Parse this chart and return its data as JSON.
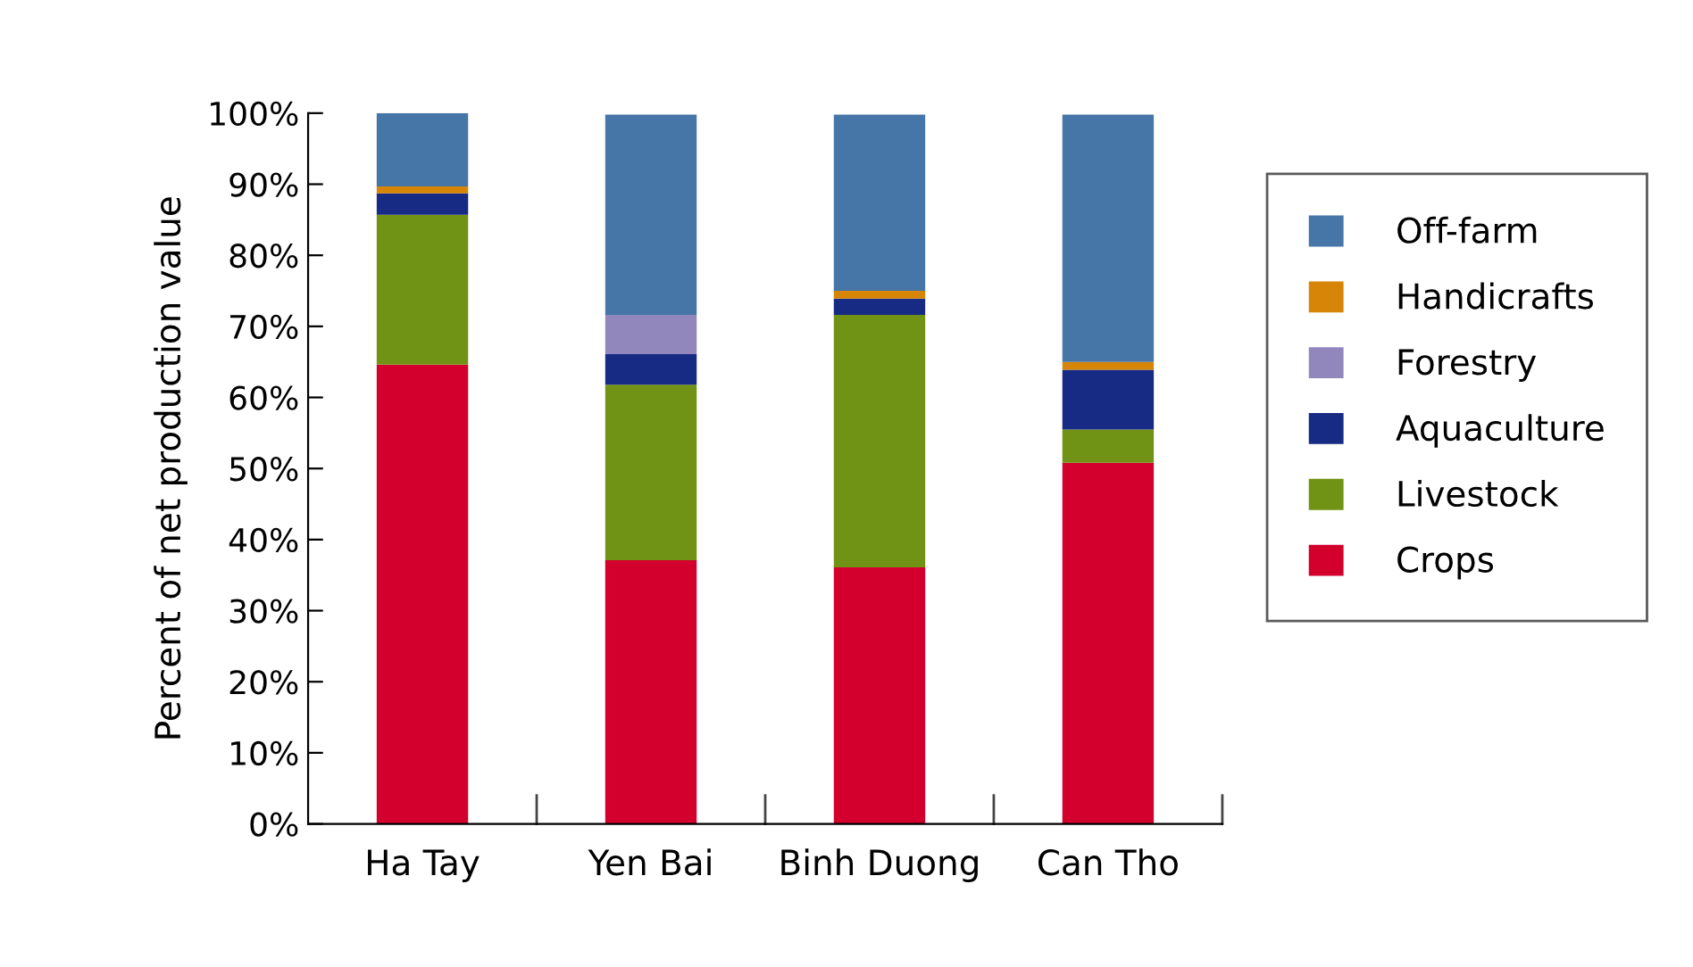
{
  "chart_data": {
    "type": "bar",
    "stacked": true,
    "ylabel": "Percent of net production value",
    "categories": [
      "Ha Tay",
      "Yen Bai",
      "Binh Duong",
      "Can Tho"
    ],
    "series": [
      {
        "name": "Crops",
        "color": "#d3002d",
        "values": [
          64.6,
          37.1,
          36.1,
          50.8
        ]
      },
      {
        "name": "Livestock",
        "color": "#719315",
        "values": [
          21.1,
          24.7,
          35.5,
          4.7
        ]
      },
      {
        "name": "Aquaculture",
        "color": "#172a84",
        "values": [
          3.0,
          4.3,
          2.3,
          8.4
        ]
      },
      {
        "name": "Forestry",
        "color": "#9187bc",
        "values": [
          0,
          5.5,
          0,
          0
        ]
      },
      {
        "name": "Handicrafts",
        "color": "#d78507",
        "values": [
          1.0,
          0,
          1.1,
          1.1
        ]
      },
      {
        "name": "Off-farm",
        "color": "#4675a8",
        "values": [
          10.3,
          28.2,
          24.8,
          34.8
        ]
      }
    ],
    "ylim": [
      0,
      100
    ],
    "yticks": [
      {
        "value": 0,
        "label": "0%"
      },
      {
        "value": 10,
        "label": "10%"
      },
      {
        "value": 20,
        "label": "20%"
      },
      {
        "value": 30,
        "label": "30%"
      },
      {
        "value": 40,
        "label": "40%"
      },
      {
        "value": 50,
        "label": "50%"
      },
      {
        "value": 60,
        "label": "60%"
      },
      {
        "value": 70,
        "label": "70%"
      },
      {
        "value": 80,
        "label": "80%"
      },
      {
        "value": 90,
        "label": "90%"
      },
      {
        "value": 100,
        "label": "100%"
      }
    ],
    "grid": false,
    "legend": "right"
  }
}
